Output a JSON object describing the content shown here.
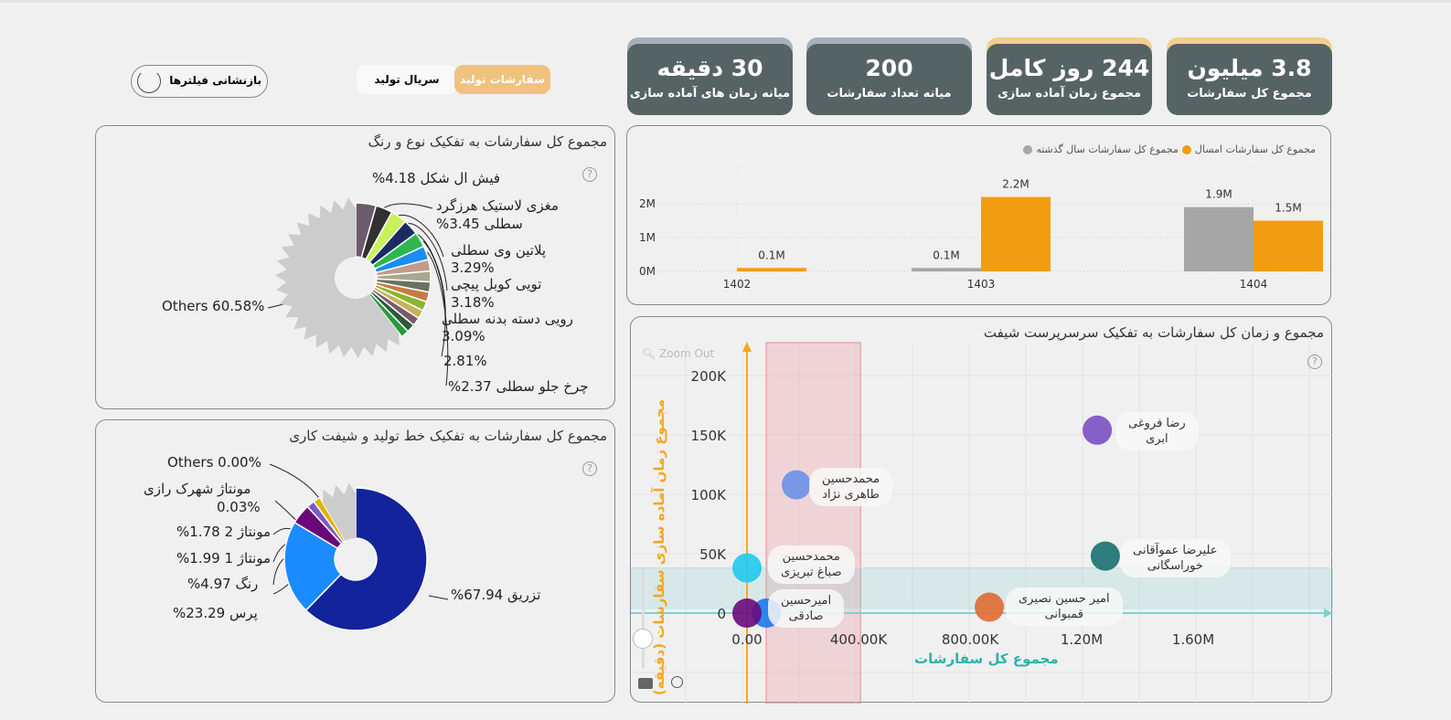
{
  "kpis": [
    {
      "value": "3.8 میلیون",
      "label": "مجموع کل سفارشات",
      "strip": "#f0cf8e"
    },
    {
      "value": "244 روز کامل",
      "label": "مجموع زمان آماده سازی",
      "strip": "#f0cf8e"
    },
    {
      "value": "200",
      "label": "میانه تعداد سفارشات",
      "strip": "#a5b1b9"
    },
    {
      "value": "30 دقیقه",
      "label": "میانه زمان های آماده سازی",
      "strip": "#a5b1b9"
    }
  ],
  "toolbar": {
    "reset_label": "بازنشانی فیلترها",
    "tab_orders": "سفارشات تولید",
    "tab_serial": "سریال تولید"
  },
  "pie1": {
    "title": "مجموع کل سفارشات به تفکیک نوع و رنگ",
    "others_label": "Others 60.58%",
    "labels": [
      "فیش ال شکل 4.18%",
      "مغزی لاستیک هرزگرد",
      "سطلی 3.45%",
      "پلاتین وی سطلی",
      "3.29%",
      "تویی کوبل پیچی",
      "3.18%",
      "رویی دسته بدنه سطلی",
      "3.09%",
      "2.81%",
      "چرخ جلو سطلی 2.37%"
    ]
  },
  "pie2": {
    "title": "مجموع کل سفارشات به تفکیک خط تولید و شیفت کاری",
    "labels": [
      "Others 0.00%",
      "مونتاژ شهرک رازی",
      "0.03%",
      "مونتاژ 2 1.78%",
      "مونتاژ 1 1.99%",
      "رنگ 4.97%",
      "پرس 23.29%",
      "تزریق 67.94%"
    ]
  },
  "chart_data": [
    {
      "type": "pie",
      "title": "مجموع کل سفارشات به تفکیک نوع و رنگ",
      "slices": [
        {
          "name": "فیش ال شکل",
          "value": 4.18,
          "color": "#6b5b6b"
        },
        {
          "name": "مغزی لاستیک هرزگرد سطلی",
          "value": 3.45,
          "color": "#333030"
        },
        {
          "name": "پلاتین وی سطلی",
          "value": 3.29,
          "color": "#c8f25a"
        },
        {
          "name": "تویی کوبل پیچی",
          "value": 3.18,
          "color": "#1a2c5e"
        },
        {
          "name": "رویی دسته بدنه سطلی",
          "value": 3.09,
          "color": "#2cb84f"
        },
        {
          "name": "",
          "value": 2.81,
          "color": "#1b8cf0"
        },
        {
          "name": "چرخ جلو سطلی",
          "value": 2.37,
          "color": "#c49a8e"
        },
        {
          "name": "",
          "value": 2.2,
          "color": "#a9a88e"
        },
        {
          "name": "",
          "value": 2.1,
          "color": "#6b7360"
        },
        {
          "name": "",
          "value": 2.0,
          "color": "#c87a44"
        },
        {
          "name": "",
          "value": 1.9,
          "color": "#8ab52c"
        },
        {
          "name": "",
          "value": 1.8,
          "color": "#c4b35a"
        },
        {
          "name": "",
          "value": 1.7,
          "color": "#7a5a6a"
        },
        {
          "name": "",
          "value": 1.7,
          "color": "#2e5a3a"
        },
        {
          "name": "",
          "value": 1.64,
          "color": "#2a9a3a"
        },
        {
          "name": "Others",
          "value": 60.58,
          "color": "#cccccc"
        }
      ]
    },
    {
      "type": "pie",
      "title": "مجموع کل سفارشات به تفکیک خط تولید و شیفت کاری",
      "slices": [
        {
          "name": "تزریق",
          "value": 67.94,
          "color": "#13239c"
        },
        {
          "name": "پرس",
          "value": 23.29,
          "color": "#1a8cff"
        },
        {
          "name": "رنگ",
          "value": 4.97,
          "color": "#6a0a7a"
        },
        {
          "name": "مونتاژ 1",
          "value": 1.99,
          "color": "#7a5acb"
        },
        {
          "name": "مونتاژ 2",
          "value": 1.78,
          "color": "#e0b400"
        },
        {
          "name": "مونتاژ شهرک رازی",
          "value": 0.03,
          "color": "#999999"
        },
        {
          "name": "Others",
          "value": 0.0,
          "color": "#cccccc"
        }
      ]
    },
    {
      "type": "bar",
      "categories": [
        "1402",
        "1403",
        "1404"
      ],
      "series": [
        {
          "name": "مجموع کل سفارشات سال گذشته",
          "color": "#a6a6a6",
          "values": [
            0,
            0.1,
            1.9
          ],
          "labels": [
            "",
            "0.1M",
            "1.9M"
          ]
        },
        {
          "name": "مجموع کل سفارشات امسال",
          "color": "#f29c12",
          "values": [
            0.1,
            2.2,
            1.5
          ],
          "labels": [
            "0.1M",
            "2.2M",
            "1.5M"
          ]
        }
      ],
      "yticks": [
        "0M",
        "1M",
        "2M"
      ],
      "ylim": [
        0,
        2.4
      ]
    },
    {
      "type": "scatter",
      "title": "مجموع و زمان کل سفارشات به تفکیک سرسرپرست شیفت",
      "xlabel": "مجموع کل سفارشات",
      "ylabel": "مجموع زمان آماده سازی سفارشات (دقیقه)",
      "xticks": [
        "0.00",
        "400.00K",
        "800.00K",
        "1.20M",
        "1.60M"
      ],
      "yticks": [
        "0",
        "50K",
        "100K",
        "150K",
        "200K"
      ],
      "xlim": [
        -100000,
        2100000
      ],
      "ylim": [
        -75000,
        230000
      ],
      "red_band": [
        69000,
        407000
      ],
      "teal_band": [
        4000,
        38000
      ],
      "points": [
        {
          "name": "رضا فروغی ابری",
          "x": 1256000,
          "y": 154000,
          "color": "#7b4fc4"
        },
        {
          "name": "محمدحسین طاهری نژاد",
          "x": 177000,
          "y": 108000,
          "color": "#6a90e8"
        },
        {
          "name": "محمدحسین صباغ تبریزی",
          "x": 0,
          "y": 38000,
          "color": "#22c8ef"
        },
        {
          "name": "",
          "x": 70000,
          "y": 0,
          "color": "#1a7af0"
        },
        {
          "name": "امیرحسین صادقی",
          "x": 0,
          "y": 0,
          "color": "#6a0a7a"
        },
        {
          "name": "علیرضا عموآقانی خوراسگانی",
          "x": 1285000,
          "y": 48000,
          "color": "#1a7070"
        },
        {
          "name": "امیر حسین نصیری قمبوانی",
          "x": 869000,
          "y": 5000,
          "color": "#e06a30"
        }
      ]
    }
  ],
  "scatter_ui": {
    "zoom_out": "Zoom Out",
    "tags": [
      [
        "رضا فروغی",
        "ابری"
      ],
      [
        "محمدحسین",
        "طاهری نژاد"
      ],
      [
        "محمدحسین",
        "صباغ تبریزی"
      ],
      [
        "امیرحسین",
        "صادقی"
      ],
      [
        "علیرضا عموآقانی",
        "خوراسگانی"
      ],
      [
        "امیر حسین نصیری",
        "قمبوانی"
      ]
    ]
  },
  "help": "?"
}
